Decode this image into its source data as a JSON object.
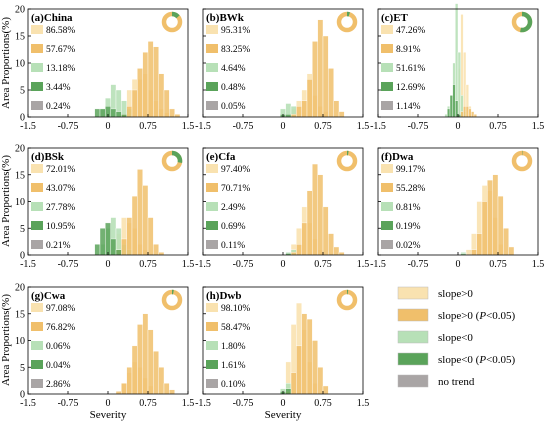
{
  "colors": {
    "slope_pos": "#f9e2b0",
    "slope_pos_sig": "#f0bf6b",
    "slope_neg": "#b7e0b7",
    "slope_neg_sig": "#5aa35a",
    "no_trend": "#a9a5a5"
  },
  "y_axis_label": "Area Proportions(%)",
  "x_axis_label": "Severity",
  "legend": [
    {
      "key": "slope_pos",
      "label": "slope>0"
    },
    {
      "key": "slope_pos_sig",
      "label": "slope>0 (P<0.05)"
    },
    {
      "key": "slope_neg",
      "label": "slope<0"
    },
    {
      "key": "slope_neg_sig",
      "label": "slope<0 (P<0.05)"
    },
    {
      "key": "no_trend",
      "label": "no trend"
    }
  ],
  "chart_data": [
    {
      "title": "(a)China",
      "type": "bar",
      "percentages": [
        "86.58%",
        "57.67%",
        "13.18%",
        "3.44%",
        "0.24%"
      ],
      "donut": {
        "positive_fraction": 0.866
      },
      "x_ticks": [
        "-1.5",
        "-0.75",
        "0",
        "0.75",
        "1.5"
      ],
      "xlim": [
        -1.5,
        1.5
      ],
      "y_ticks": [
        "0",
        "5",
        "10",
        "15",
        "20"
      ],
      "ylim": [
        0,
        20
      ],
      "bin_start": -0.25,
      "bin_width": 0.1,
      "series": {
        "slope_pos": [
          0,
          0,
          0,
          0,
          0,
          0,
          5,
          7,
          7,
          8,
          5,
          3,
          1.5,
          0.8,
          0.3
        ],
        "slope_pos_sig": [
          0,
          0,
          0,
          0,
          0,
          0.5,
          2,
          5,
          9,
          12,
          14,
          13,
          8,
          5,
          1.5,
          0.5
        ],
        "slope_neg": [
          0,
          1.5,
          3.5,
          6,
          5,
          3,
          1.5
        ],
        "slope_neg_sig": [
          1.5,
          1.5,
          2,
          1.5,
          1,
          0.5
        ]
      }
    },
    {
      "title": "(b)BWk",
      "type": "bar",
      "percentages": [
        "95.31%",
        "83.25%",
        "4.64%",
        "0.48%",
        "0.05%"
      ],
      "donut": {
        "positive_fraction": 0.953
      },
      "x_ticks": [
        "-1.5",
        "-0.75",
        "0",
        "0.75",
        "1.5"
      ],
      "xlim": [
        -1.5,
        1.5
      ],
      "y_ticks": [
        "0",
        "5",
        "10",
        "15",
        "20"
      ],
      "ylim": [
        0,
        20
      ],
      "bin_start": -0.05,
      "bin_width": 0.1,
      "series": {
        "slope_pos": [
          0,
          0,
          1.5,
          3,
          5,
          8,
          4,
          2,
          1
        ],
        "slope_pos_sig": [
          0,
          0,
          0.5,
          2,
          3,
          7,
          14,
          18,
          15,
          9,
          3,
          1
        ],
        "slope_neg": [
          1.5,
          2.5,
          2
        ],
        "slope_neg_sig": [
          0.5,
          0.5
        ]
      }
    },
    {
      "title": "(c)ET",
      "type": "bar",
      "percentages": [
        "47.26%",
        "8.91%",
        "51.61%",
        "12.69%",
        "1.14%"
      ],
      "donut": {
        "positive_fraction": 0.473
      },
      "x_ticks": [
        "-1.5",
        "-0.75",
        "0",
        "0.75",
        "1.5"
      ],
      "xlim": [
        -1.5,
        1.5
      ],
      "y_ticks": [
        "0",
        "5",
        "10",
        "15",
        "20"
      ],
      "ylim": [
        0,
        20
      ],
      "bin_start": -0.25,
      "bin_width": 0.05,
      "series": {
        "slope_pos": [
          0,
          0,
          0,
          0,
          0,
          9,
          19,
          12,
          6,
          2,
          0.5
        ],
        "slope_pos_sig": [
          0,
          0,
          0,
          0,
          0,
          0,
          1,
          2,
          2,
          1.5,
          1,
          0.5
        ],
        "slope_neg": [
          0.5,
          2,
          4,
          10,
          21,
          12,
          4,
          1
        ],
        "slope_neg_sig": [
          0,
          1.5,
          4,
          6,
          3,
          0.5
        ]
      }
    },
    {
      "title": "(d)BSk",
      "type": "bar",
      "percentages": [
        "72.01%",
        "43.07%",
        "27.78%",
        "10.95%",
        "0.21%"
      ],
      "donut": {
        "positive_fraction": 0.72
      },
      "x_ticks": [
        "-1.5",
        "-0.75",
        "0",
        "0.75",
        "1.5"
      ],
      "xlim": [
        -1.5,
        1.5
      ],
      "y_ticks": [
        "0",
        "5",
        "10",
        "15",
        "20"
      ],
      "ylim": [
        0,
        20
      ],
      "bin_start": -0.25,
      "bin_width": 0.1,
      "series": {
        "slope_pos": [
          0,
          0,
          0,
          2,
          4,
          7,
          6,
          5,
          2,
          1
        ],
        "slope_pos_sig": [
          0,
          0,
          0,
          0,
          1,
          3,
          7,
          11,
          16,
          13,
          7,
          2,
          0.5
        ],
        "slope_neg": [
          0,
          2,
          5,
          7,
          5,
          2,
          1
        ],
        "slope_neg_sig": [
          2,
          5,
          6,
          3,
          1
        ]
      }
    },
    {
      "title": "(e)Cfa",
      "type": "bar",
      "percentages": [
        "97.40%",
        "70.71%",
        "2.49%",
        "0.69%",
        "0.11%"
      ],
      "donut": {
        "positive_fraction": 0.974
      },
      "x_ticks": [
        "-1.5",
        "-0.75",
        "0",
        "0.75",
        "1.5"
      ],
      "xlim": [
        -1.5,
        1.5
      ],
      "y_ticks": [
        "0",
        "5",
        "10",
        "15",
        "20"
      ],
      "ylim": [
        0,
        20
      ],
      "bin_start": 0.05,
      "bin_width": 0.1,
      "series": {
        "slope_pos": [
          0,
          2,
          5,
          9,
          6,
          3,
          1
        ],
        "slope_pos_sig": [
          0,
          0.5,
          2,
          6,
          12,
          17,
          15,
          9,
          4,
          1.5,
          0.5
        ],
        "slope_neg": [
          0.5,
          1
        ],
        "slope_neg_sig": [
          0.3
        ]
      }
    },
    {
      "title": "(f)Dwa",
      "type": "bar",
      "percentages": [
        "99.17%",
        "55.28%",
        "0.81%",
        "0.19%",
        "0.02%"
      ],
      "donut": {
        "positive_fraction": 0.992
      },
      "x_ticks": [
        "-1.5",
        "-0.75",
        "0",
        "0.75",
        "1.5"
      ],
      "xlim": [
        -1.5,
        1.5
      ],
      "y_ticks": [
        "0",
        "5",
        "10",
        "15",
        "20"
      ],
      "ylim": [
        0,
        20
      ],
      "bin_start": 0.05,
      "bin_width": 0.1,
      "series": {
        "slope_pos": [
          0,
          1,
          4,
          10,
          13,
          12,
          7,
          2
        ],
        "slope_pos_sig": [
          0,
          0,
          1,
          4,
          10,
          14,
          15,
          11,
          5,
          1.5
        ],
        "slope_neg": [
          0.5
        ],
        "slope_neg_sig": [
          0.2
        ]
      }
    },
    {
      "title": "(g)Cwa",
      "type": "bar",
      "percentages": [
        "97.08%",
        "76.82%",
        "0.06%",
        "0.04%",
        "2.86%"
      ],
      "donut": {
        "positive_fraction": 0.971
      },
      "x_ticks": [
        "-1.5",
        "-0.75",
        "0",
        "0.75",
        "1.5"
      ],
      "xlim": [
        -1.5,
        1.5
      ],
      "y_ticks": [
        "0",
        "5",
        "10",
        "15",
        "20"
      ],
      "ylim": [
        0,
        20
      ],
      "bin_start": 0.15,
      "bin_width": 0.1,
      "series": {
        "slope_pos": [
          0,
          2,
          4,
          6,
          5,
          3,
          1.5
        ],
        "slope_pos_sig": [
          0.5,
          2,
          5,
          9,
          13,
          15,
          12,
          8,
          5,
          2,
          0.8
        ],
        "slope_neg": [],
        "slope_neg_sig": []
      }
    },
    {
      "title": "(h)Dwb",
      "type": "bar",
      "percentages": [
        "98.10%",
        "58.47%",
        "1.80%",
        "1.61%",
        "0.10%"
      ],
      "donut": {
        "positive_fraction": 0.981
      },
      "x_ticks": [
        "-1.5",
        "-0.75",
        "0",
        "0.75",
        "1.5"
      ],
      "xlim": [
        -1.5,
        1.5
      ],
      "y_ticks": [
        "0",
        "5",
        "10",
        "15",
        "20"
      ],
      "ylim": [
        0,
        20
      ],
      "bin_start": -0.05,
      "bin_width": 0.1,
      "series": {
        "slope_pos": [
          0,
          6,
          13,
          17,
          12,
          6,
          2
        ],
        "slope_pos_sig": [
          0,
          0.5,
          4,
          9,
          15,
          14,
          10,
          5,
          1.5
        ],
        "slope_neg": [
          1,
          2
        ],
        "slope_neg_sig": [
          0.5,
          1
        ]
      }
    }
  ]
}
